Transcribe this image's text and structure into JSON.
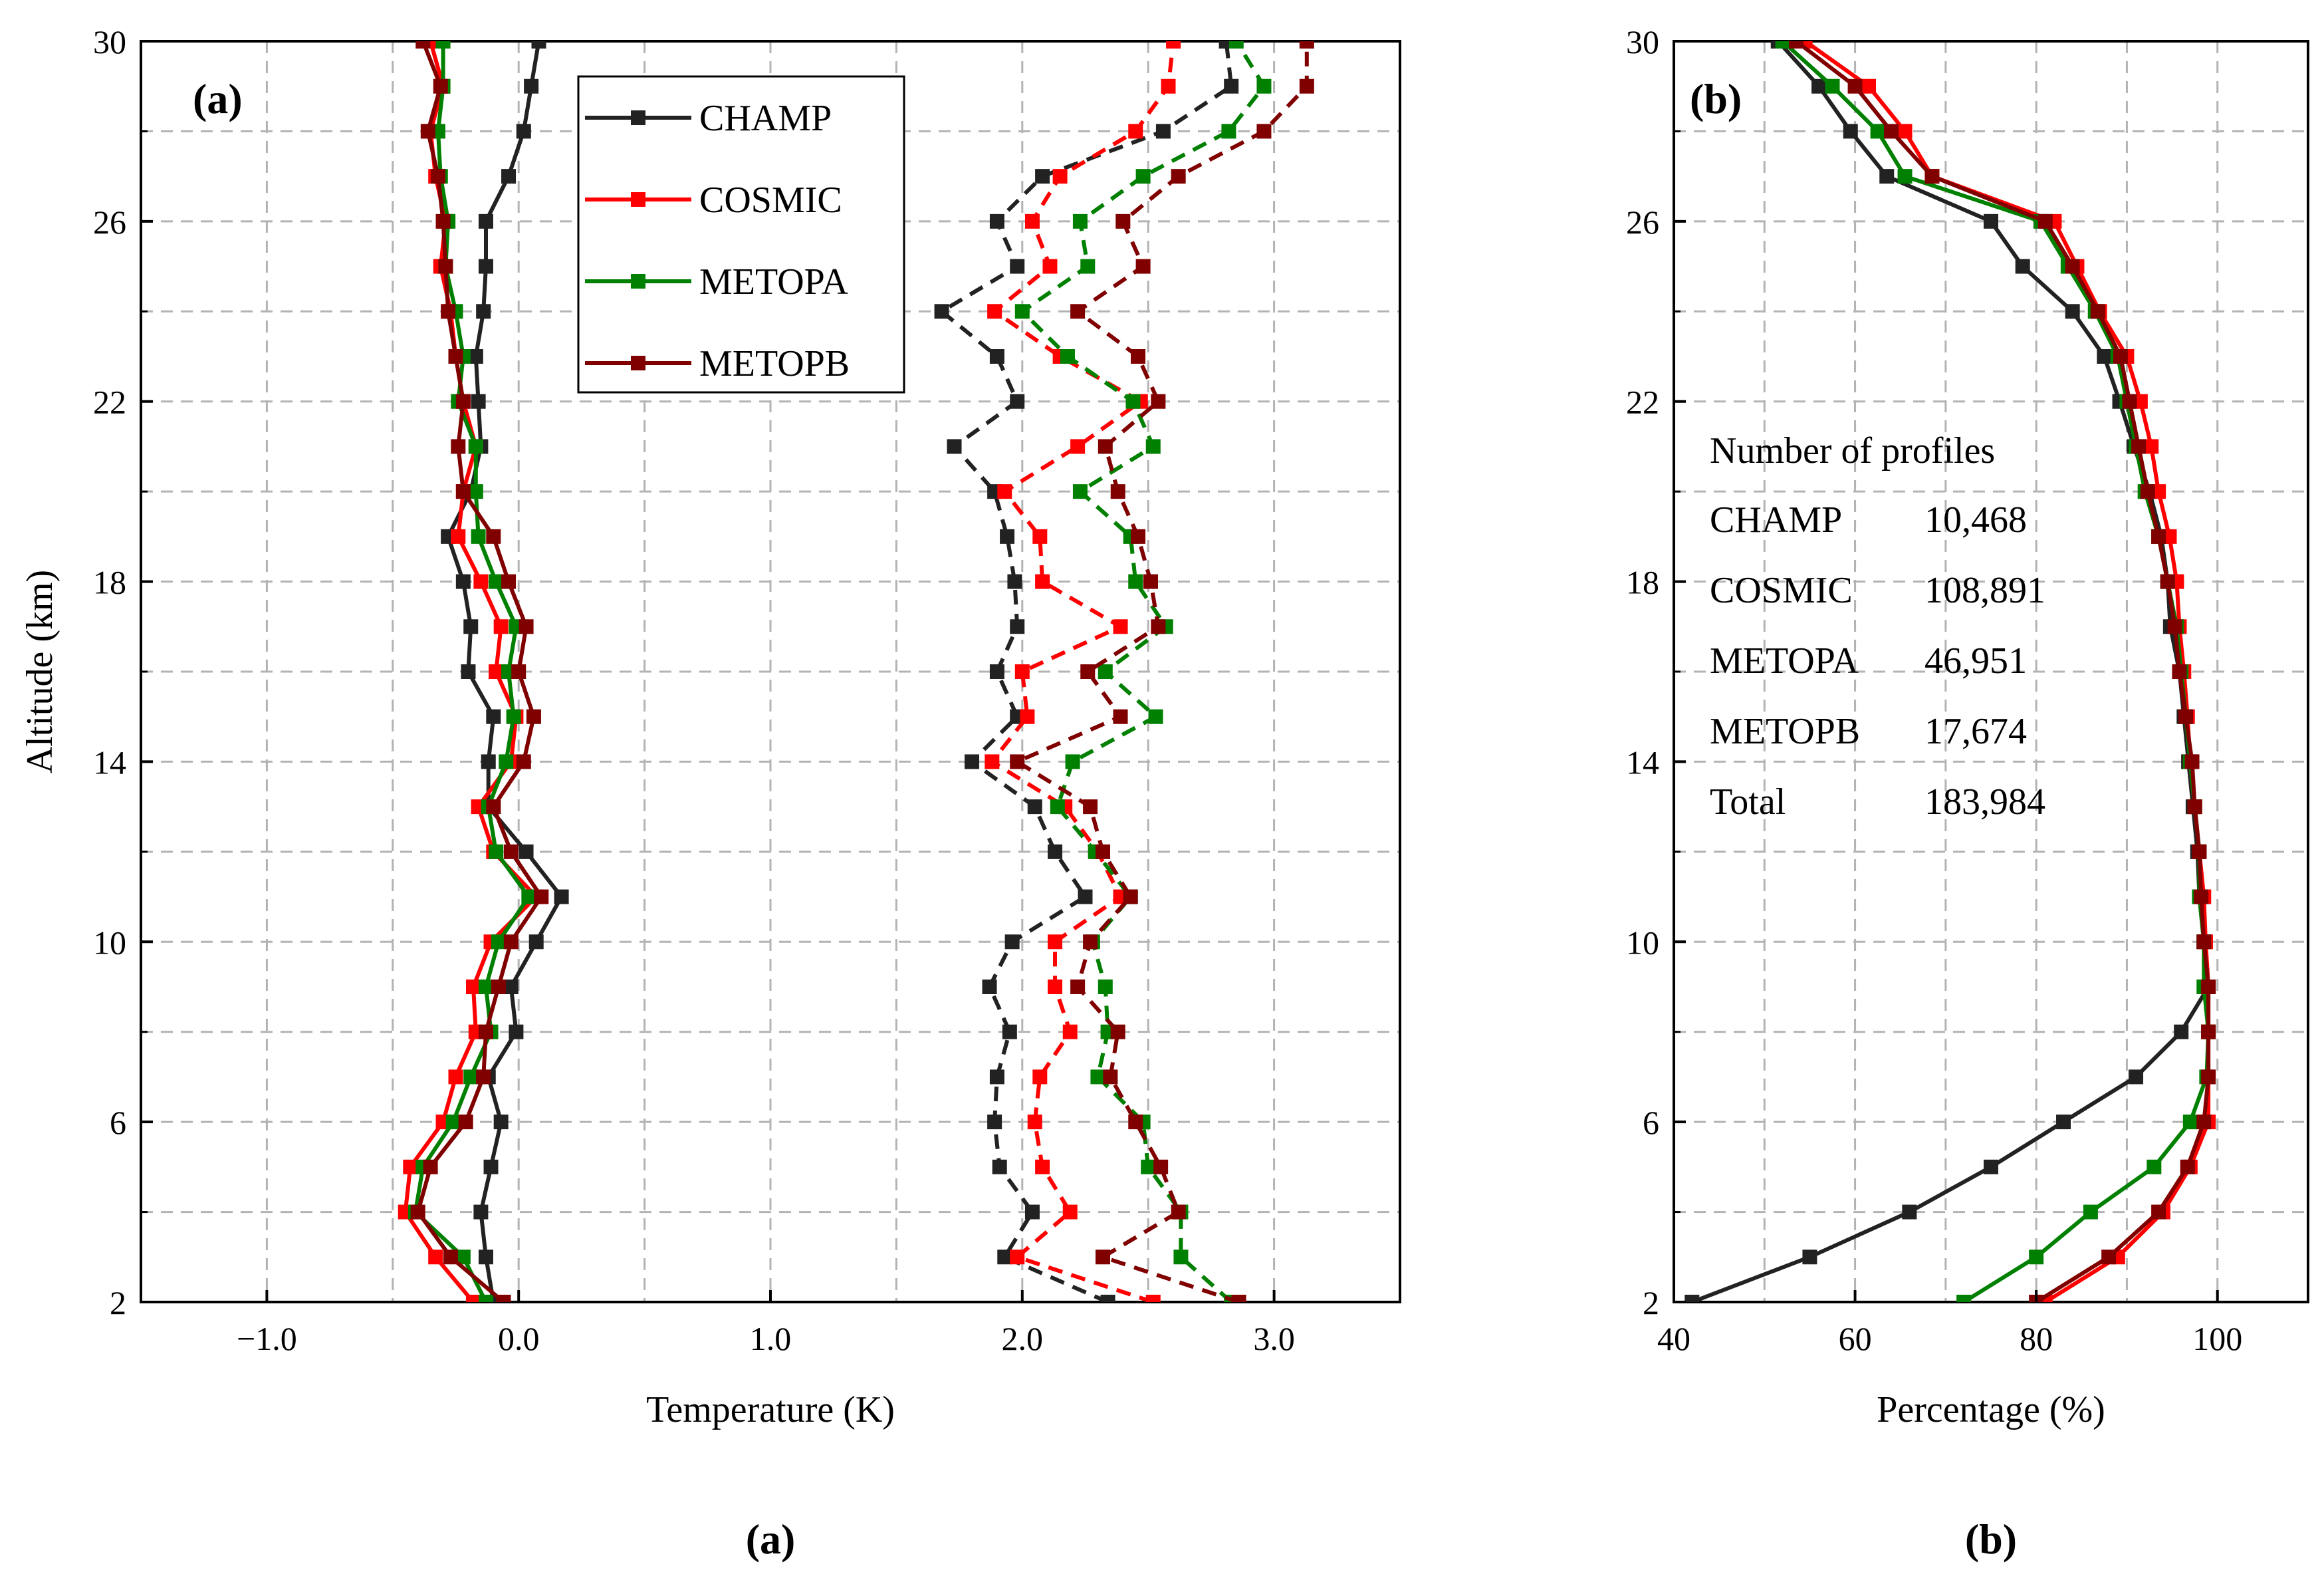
{
  "colors": {
    "CHAMP": "#222222",
    "COSMIC": "#ff0000",
    "METOPA": "#008000",
    "METOPB": "#800000",
    "grid": "#b3b3b3"
  },
  "captions": [
    "(a)",
    "(b)"
  ],
  "chart_data": [
    {
      "type": "line",
      "panel_label": "(a)",
      "xlabel": "Temperature (K)",
      "ylabel": "Altitude (km)",
      "xlim": [
        -1.5,
        3.5
      ],
      "ylim": [
        2,
        30
      ],
      "xticks": [
        -1.0,
        0.0,
        1.0,
        2.0,
        3.0
      ],
      "xtick_labels": [
        "−1.0",
        "0.0",
        "1.0",
        "2.0",
        "3.0"
      ],
      "yticks": [
        2,
        6,
        10,
        14,
        18,
        22,
        26,
        30
      ],
      "grid": true,
      "legend": {
        "position": "top-center",
        "entries": [
          "CHAMP",
          "COSMIC",
          "METOPA",
          "METOPB"
        ]
      },
      "y": [
        2,
        3,
        4,
        5,
        6,
        7,
        8,
        9,
        10,
        11,
        12,
        13,
        14,
        15,
        16,
        17,
        18,
        19,
        20,
        21,
        22,
        23,
        24,
        25,
        26,
        27,
        28,
        29,
        30
      ],
      "series": [
        {
          "name": "CHAMP",
          "style": "solid",
          "x": [
            -0.1,
            -0.13,
            -0.15,
            -0.11,
            -0.07,
            -0.12,
            -0.01,
            -0.03,
            0.07,
            0.17,
            0.03,
            -0.12,
            -0.12,
            -0.1,
            -0.2,
            -0.19,
            -0.22,
            -0.28,
            -0.19,
            -0.15,
            -0.16,
            -0.17,
            -0.14,
            -0.13,
            -0.13,
            -0.04,
            0.02,
            0.05,
            0.08
          ]
        },
        {
          "name": "CHAMP",
          "style": "dashed",
          "x": [
            2.34,
            1.93,
            2.04,
            1.91,
            1.89,
            1.9,
            1.95,
            1.87,
            1.96,
            2.25,
            2.13,
            2.05,
            1.8,
            1.98,
            1.9,
            1.98,
            1.97,
            1.94,
            1.89,
            1.73,
            1.98,
            1.9,
            1.68,
            1.98,
            1.9,
            2.08,
            2.56,
            2.83,
            2.81
          ]
        },
        {
          "name": "COSMIC",
          "style": "solid",
          "x": [
            -0.18,
            -0.33,
            -0.45,
            -0.43,
            -0.3,
            -0.25,
            -0.17,
            -0.18,
            -0.11,
            0.07,
            -0.1,
            -0.16,
            -0.03,
            -0.01,
            -0.09,
            -0.07,
            -0.15,
            -0.24,
            -0.22,
            -0.17,
            -0.22,
            -0.25,
            -0.27,
            -0.31,
            -0.29,
            -0.33,
            -0.35,
            -0.3,
            -0.35
          ]
        },
        {
          "name": "COSMIC",
          "style": "dashed",
          "x": [
            2.52,
            1.98,
            2.19,
            2.08,
            2.05,
            2.07,
            2.19,
            2.13,
            2.13,
            2.39,
            2.3,
            2.17,
            1.88,
            2.02,
            2.0,
            2.39,
            2.08,
            2.07,
            1.93,
            2.22,
            2.47,
            2.15,
            1.89,
            2.11,
            2.04,
            2.15,
            2.45,
            2.58,
            2.6
          ]
        },
        {
          "name": "METOPA",
          "style": "solid",
          "x": [
            -0.13,
            -0.22,
            -0.41,
            -0.38,
            -0.26,
            -0.19,
            -0.11,
            -0.13,
            -0.08,
            0.04,
            -0.09,
            -0.12,
            -0.05,
            -0.02,
            -0.04,
            -0.01,
            -0.09,
            -0.16,
            -0.17,
            -0.17,
            -0.24,
            -0.22,
            -0.25,
            -0.29,
            -0.28,
            -0.31,
            -0.32,
            -0.3,
            -0.3
          ]
        },
        {
          "name": "METOPA",
          "style": "dashed",
          "x": [
            2.83,
            2.63,
            2.63,
            2.5,
            2.48,
            2.3,
            2.34,
            2.33,
            2.28,
            2.43,
            2.29,
            2.14,
            2.2,
            2.53,
            2.33,
            2.57,
            2.45,
            2.43,
            2.23,
            2.52,
            2.44,
            2.18,
            2.0,
            2.26,
            2.23,
            2.48,
            2.82,
            2.96,
            2.85
          ]
        },
        {
          "name": "METOPB",
          "style": "solid",
          "x": [
            -0.06,
            -0.27,
            -0.4,
            -0.35,
            -0.21,
            -0.14,
            -0.13,
            -0.08,
            -0.03,
            0.09,
            -0.03,
            -0.1,
            0.02,
            0.06,
            0.0,
            0.03,
            -0.04,
            -0.1,
            -0.22,
            -0.24,
            -0.22,
            -0.25,
            -0.28,
            -0.29,
            -0.3,
            -0.32,
            -0.36,
            -0.31,
            -0.38
          ]
        },
        {
          "name": "METOPB",
          "style": "dashed",
          "x": [
            2.86,
            2.32,
            2.62,
            2.55,
            2.45,
            2.35,
            2.38,
            2.22,
            2.27,
            2.43,
            2.32,
            2.27,
            1.98,
            2.39,
            2.26,
            2.54,
            2.51,
            2.46,
            2.38,
            2.33,
            2.54,
            2.46,
            2.22,
            2.48,
            2.4,
            2.62,
            2.96,
            3.13,
            3.13
          ]
        }
      ]
    },
    {
      "type": "line",
      "panel_label": "(b)",
      "xlabel": "Percentage (%)",
      "ylabel": "",
      "xlim": [
        40,
        110
      ],
      "ylim": [
        2,
        30
      ],
      "xticks": [
        40,
        60,
        80,
        100
      ],
      "yticks": [
        2,
        6,
        10,
        14,
        18,
        22,
        26,
        30
      ],
      "grid": true,
      "legend": null,
      "table": {
        "title": "Number of profiles",
        "rows": [
          {
            "name": "CHAMP",
            "value": "10,468"
          },
          {
            "name": "COSMIC",
            "value": "108,891"
          },
          {
            "name": "METOPA",
            "value": "46,951"
          },
          {
            "name": "METOPB",
            "value": "17,674"
          },
          {
            "name": "Total",
            "value": "183,984"
          }
        ]
      },
      "y": [
        2,
        3,
        4,
        5,
        6,
        7,
        8,
        9,
        10,
        11,
        12,
        13,
        14,
        15,
        16,
        17,
        18,
        19,
        20,
        21,
        22,
        23,
        24,
        25,
        26,
        27,
        28,
        29,
        30
      ],
      "series": [
        {
          "name": "CHAMP",
          "x": [
            42,
            55,
            66,
            75,
            83,
            91,
            96,
            99,
            98.5,
            98,
            97.8,
            97.3,
            96.8,
            96.3,
            95.8,
            94.8,
            94.5,
            93.8,
            92.5,
            90.8,
            89.2,
            87.5,
            84,
            78.5,
            75,
            63.5,
            59.5,
            56,
            51.5
          ]
        },
        {
          "name": "COSMIC",
          "x": [
            81,
            89,
            94,
            97,
            99,
            99,
            99,
            99,
            98.7,
            98.5,
            98,
            97.5,
            97,
            96.7,
            96.3,
            95.8,
            95.5,
            94.7,
            93.5,
            92.7,
            91.5,
            90,
            87,
            84.5,
            82,
            68.5,
            65.5,
            61.5,
            54.5
          ]
        },
        {
          "name": "METOPA",
          "x": [
            72,
            80,
            86,
            93,
            97,
            98.8,
            99,
            98.5,
            98.5,
            98,
            98,
            97.5,
            97,
            96.5,
            96,
            95.5,
            94.5,
            93.5,
            92,
            91,
            90,
            89,
            86.5,
            83.5,
            80.5,
            65.5,
            62.5,
            57.5,
            52
          ]
        },
        {
          "name": "METOPB",
          "x": [
            80,
            88,
            93.5,
            96.7,
            98.5,
            99,
            99,
            99,
            98.5,
            98.2,
            98,
            97.5,
            97.2,
            96.5,
            95.8,
            95.3,
            94.5,
            93.5,
            92.3,
            91.3,
            90.3,
            89.3,
            86.8,
            84,
            81,
            68.5,
            64,
            60,
            53.5
          ]
        }
      ]
    }
  ]
}
